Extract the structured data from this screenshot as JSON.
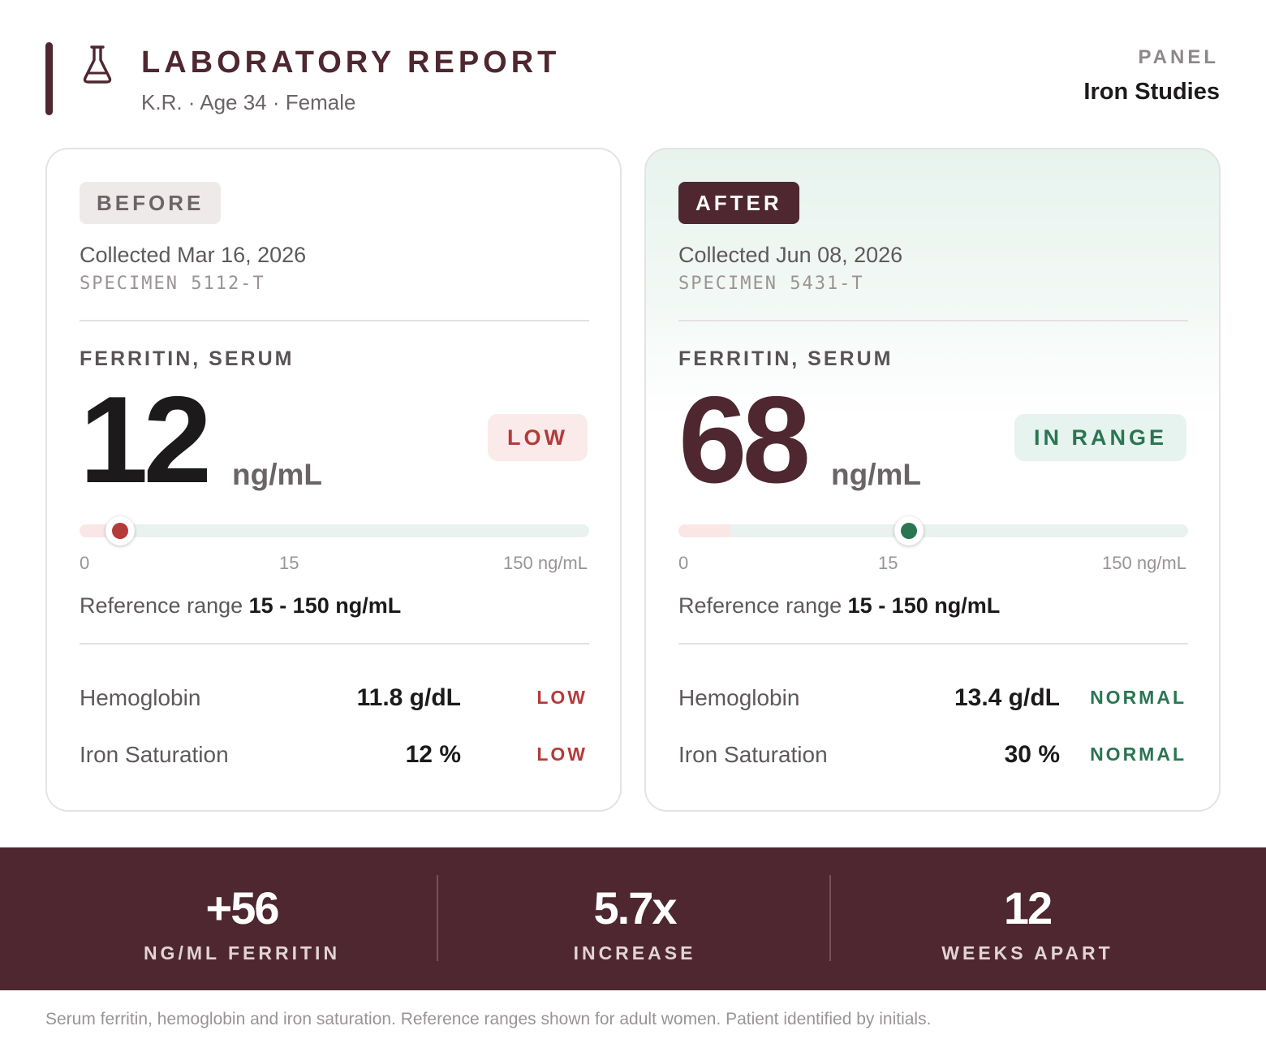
{
  "header": {
    "title": "LABORATORY REPORT",
    "patient": "K.R. · Age 34 · Female",
    "panel_label": "PANEL",
    "panel_value": "Iron Studies",
    "icon": "flask-icon",
    "accent_color": "#4e2730"
  },
  "before": {
    "badge": "BEFORE",
    "collected": "Collected Mar 16, 2026",
    "specimen": "SPECIMEN 5112-T",
    "analyte": "FERRITIN, SERUM",
    "value": "12",
    "unit": "ng/mL",
    "status": "LOW",
    "scale": {
      "min_label": "0",
      "mid_label": "15",
      "max_label": "150 ng/mL",
      "min": 0,
      "low_limit": 15,
      "max": 150,
      "marker_value": 12
    },
    "reference_label": "Reference range",
    "reference_value": "15 - 150 ng/mL",
    "rows": [
      {
        "name": "Hemoglobin",
        "value": "11.8 g/dL",
        "flag": "LOW"
      },
      {
        "name": "Iron Saturation",
        "value": "12 %",
        "flag": "LOW"
      }
    ]
  },
  "after": {
    "badge": "AFTER",
    "collected": "Collected Jun 08, 2026",
    "specimen": "SPECIMEN 5431-T",
    "analyte": "FERRITIN, SERUM",
    "value": "68",
    "unit": "ng/mL",
    "status": "IN RANGE",
    "scale": {
      "min_label": "0",
      "mid_label": "15",
      "max_label": "150 ng/mL",
      "min": 0,
      "low_limit": 15,
      "max": 150,
      "marker_value": 68
    },
    "reference_label": "Reference range",
    "reference_value": "15 - 150 ng/mL",
    "rows": [
      {
        "name": "Hemoglobin",
        "value": "13.4 g/dL",
        "flag": "NORMAL"
      },
      {
        "name": "Iron Saturation",
        "value": "30 %",
        "flag": "NORMAL"
      }
    ]
  },
  "summary": [
    {
      "value": "+56",
      "label": "NG/ML FERRITIN"
    },
    {
      "value": "5.7x",
      "label": "INCREASE"
    },
    {
      "value": "12",
      "label": "WEEKS APART"
    }
  ],
  "footnote": "Serum ferritin, hemoglobin and iron saturation. Reference ranges shown for adult women. Patient identified by initials.",
  "colors": {
    "low": "#b53a3a",
    "normal": "#2a7552",
    "low_bg": "#fbeaea",
    "normal_bg": "#e7f3ee"
  }
}
